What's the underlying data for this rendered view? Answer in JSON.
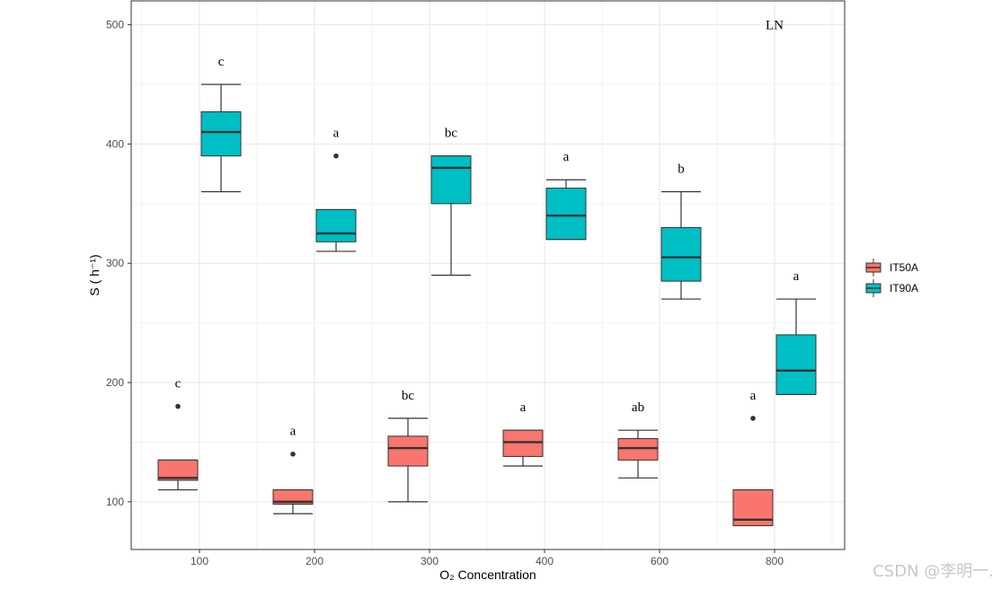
{
  "chart_data": {
    "type": "boxplot",
    "xlabel": "O₂ Concentration",
    "ylabel": "S ( h⁻¹)",
    "panel_label": "LN",
    "categories": [
      "100",
      "200",
      "300",
      "400",
      "600",
      "800"
    ],
    "yticks": [
      100,
      200,
      300,
      400,
      500
    ],
    "ylim": [
      60,
      520
    ],
    "legend_title": "",
    "legend_position": "right",
    "series": [
      {
        "name": "IT50A",
        "color": "#F8766D",
        "boxes": [
          {
            "category": "100",
            "whisker_low": 110,
            "q1": 118,
            "median": 120,
            "q3": 135,
            "whisker_high": 135,
            "outliers": [
              180
            ],
            "letter": "c"
          },
          {
            "category": "200",
            "whisker_low": 90,
            "q1": 98,
            "median": 100,
            "q3": 110,
            "whisker_high": 110,
            "outliers": [
              140
            ],
            "letter": "a"
          },
          {
            "category": "300",
            "whisker_low": 100,
            "q1": 130,
            "median": 145,
            "q3": 155,
            "whisker_high": 170,
            "outliers": [],
            "letter": "bc"
          },
          {
            "category": "400",
            "whisker_low": 130,
            "q1": 138,
            "median": 150,
            "q3": 160,
            "whisker_high": 160,
            "outliers": [],
            "letter": "a"
          },
          {
            "category": "600",
            "whisker_low": 120,
            "q1": 135,
            "median": 145,
            "q3": 153,
            "whisker_high": 160,
            "outliers": [],
            "letter": "ab"
          },
          {
            "category": "800",
            "whisker_low": 80,
            "q1": 80,
            "median": 85,
            "q3": 110,
            "whisker_high": 110,
            "outliers": [
              170
            ],
            "letter": "a"
          }
        ]
      },
      {
        "name": "IT90A",
        "color": "#00BFC4",
        "boxes": [
          {
            "category": "100",
            "whisker_low": 360,
            "q1": 390,
            "median": 410,
            "q3": 427,
            "whisker_high": 450,
            "outliers": [],
            "letter": "c"
          },
          {
            "category": "200",
            "whisker_low": 310,
            "q1": 318,
            "median": 325,
            "q3": 345,
            "whisker_high": 345,
            "outliers": [
              390
            ],
            "letter": "a"
          },
          {
            "category": "300",
            "whisker_low": 290,
            "q1": 350,
            "median": 380,
            "q3": 390,
            "whisker_high": 390,
            "outliers": [],
            "letter": "bc"
          },
          {
            "category": "400",
            "whisker_low": 320,
            "q1": 320,
            "median": 340,
            "q3": 363,
            "whisker_high": 370,
            "outliers": [],
            "letter": "a"
          },
          {
            "category": "600",
            "whisker_low": 270,
            "q1": 285,
            "median": 305,
            "q3": 330,
            "whisker_high": 360,
            "outliers": [],
            "letter": "b"
          },
          {
            "category": "800",
            "whisker_low": 190,
            "q1": 190,
            "median": 210,
            "q3": 240,
            "whisker_high": 270,
            "outliers": [],
            "letter": "a"
          }
        ]
      }
    ]
  },
  "watermark": "CSDN @李明一."
}
